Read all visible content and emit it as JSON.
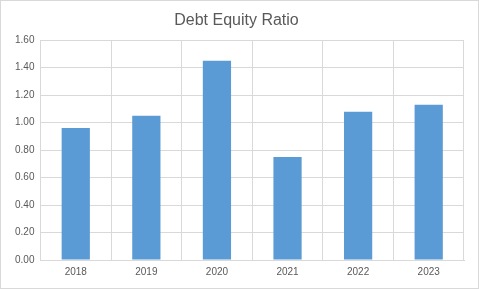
{
  "chart_data": {
    "type": "bar",
    "title": "Debt Equity Ratio",
    "categories": [
      "2018",
      "2019",
      "2020",
      "2021",
      "2022",
      "2023"
    ],
    "values": [
      0.96,
      1.05,
      1.45,
      0.75,
      1.08,
      1.13
    ],
    "color": "#5b9bd5",
    "ylim": [
      0,
      1.6
    ],
    "yticks": [
      {
        "value": 0,
        "label": "0.00"
      },
      {
        "value": 0.2,
        "label": "0.20"
      },
      {
        "value": 0.4,
        "label": "0.40"
      },
      {
        "value": 0.6,
        "label": "0.60"
      },
      {
        "value": 0.8,
        "label": "0.80"
      },
      {
        "value": 1.0,
        "label": "1.00"
      },
      {
        "value": 1.2,
        "label": "1.20"
      },
      {
        "value": 1.4,
        "label": "1.40"
      },
      {
        "value": 1.6,
        "label": "1.60"
      }
    ],
    "grid": true
  }
}
